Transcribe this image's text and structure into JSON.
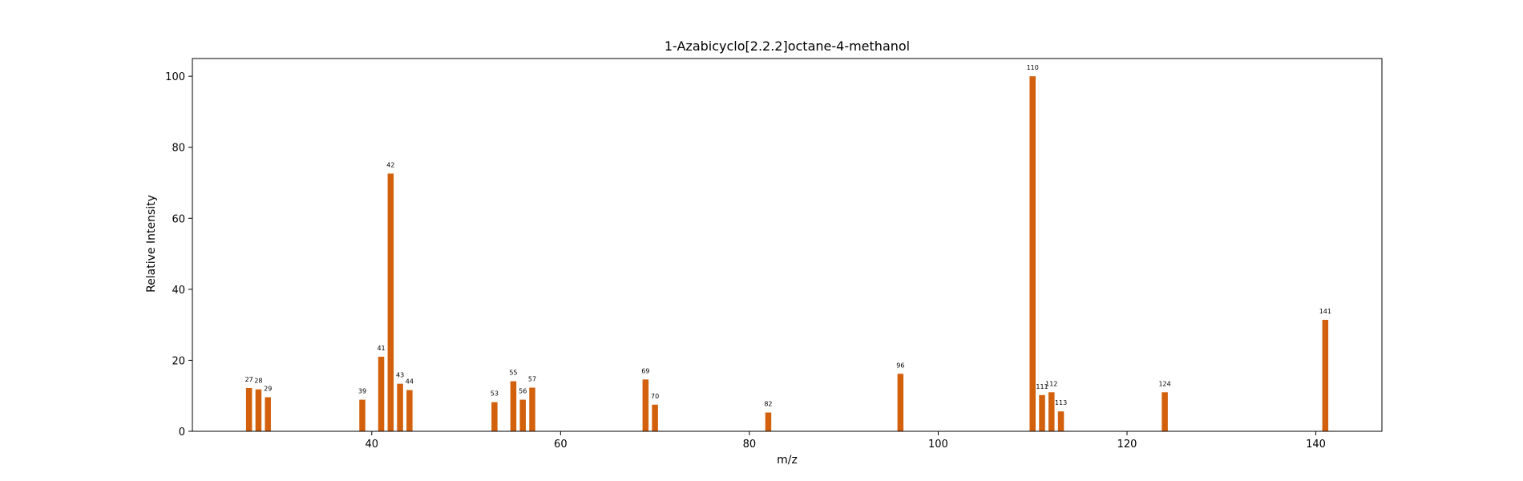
{
  "chart_data": {
    "type": "bar",
    "title": "1-Azabicyclo[2.2.2]octane-4-methanol",
    "xlabel": "m/z",
    "ylabel": "Relative Intensity",
    "xlim": [
      21,
      147
    ],
    "ylim": [
      0,
      105
    ],
    "xticks": [
      40,
      60,
      80,
      100,
      120,
      140
    ],
    "yticks": [
      0,
      20,
      40,
      60,
      80,
      100
    ],
    "bar_color": "#d2600c",
    "grid": false,
    "legend": "none",
    "series": [
      {
        "x": [
          27,
          28,
          29,
          39,
          41,
          42,
          43,
          44,
          53,
          55,
          56,
          57,
          69,
          70,
          82,
          96,
          110,
          111,
          112,
          113,
          124,
          141
        ],
        "values": [
          12.2,
          11.8,
          9.6,
          8.9,
          21.0,
          72.6,
          13.4,
          11.6,
          8.2,
          14.1,
          8.9,
          12.3,
          14.6,
          7.5,
          5.3,
          16.2,
          100.0,
          10.2,
          11.0,
          5.6,
          11.0,
          31.4
        ],
        "labels": [
          "27",
          "28",
          "29",
          "39",
          "41",
          "42",
          "43",
          "44",
          "53",
          "55",
          "56",
          "57",
          "69",
          "70",
          "82",
          "96",
          "110",
          "111",
          "112",
          "113",
          "124",
          "141"
        ]
      }
    ]
  }
}
